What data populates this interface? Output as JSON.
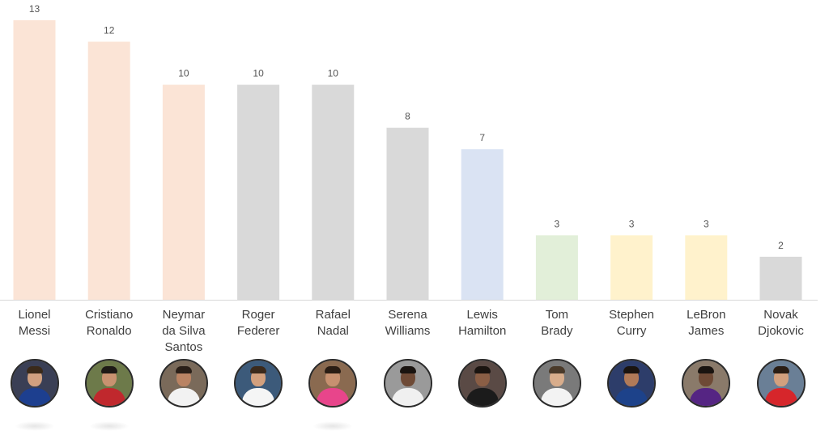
{
  "chart_data": {
    "type": "bar",
    "title": "",
    "xlabel": "",
    "ylabel": "",
    "ylim": [
      0,
      13
    ],
    "grid": false,
    "legend": "none",
    "categories": [
      "Lionel\nMessi",
      "Cristiano\nRonaldo",
      "Neymar\nda Silva\nSantos",
      "Roger\nFederer",
      "Rafael\nNadal",
      "Serena\nWilliams",
      "Lewis\nHamilton",
      "Tom\nBrady",
      "Stephen\nCurry",
      "LeBron\nJames",
      "Novak\nDjokovic"
    ],
    "values": [
      13,
      12,
      10,
      10,
      10,
      8,
      7,
      3,
      3,
      3,
      2
    ],
    "data_labels": [
      "13",
      "12",
      "10",
      "10",
      "10",
      "8",
      "7",
      "3",
      "3",
      "3",
      "2"
    ],
    "bar_colors": [
      "#fbe4d6",
      "#fbe4d6",
      "#fbe4d6",
      "#d9d9d9",
      "#d9d9d9",
      "#d9d9d9",
      "#dae3f3",
      "#e2efd9",
      "#fff2cc",
      "#fff2cc",
      "#d9d9d9"
    ],
    "axis_color": "#d9d9d9"
  },
  "avatars": [
    {
      "icon": "messi-photo-icon",
      "bg": "#3a3f55",
      "jersey": "#1d3f8f",
      "skin": "#d0a080",
      "hair": "#3a2a1a"
    },
    {
      "icon": "ronaldo-photo-icon",
      "bg": "#6d7a4a",
      "jersey": "#c0282d",
      "skin": "#c89270",
      "hair": "#1e1a16"
    },
    {
      "icon": "neymar-photo-icon",
      "bg": "#7a6a5a",
      "jersey": "#f2f2f2",
      "skin": "#b98363",
      "hair": "#2a1f18"
    },
    {
      "icon": "federer-photo-icon",
      "bg": "#3c5a7a",
      "jersey": "#f5f5f5",
      "skin": "#d2a07e",
      "hair": "#3b2a1c"
    },
    {
      "icon": "nadal-photo-icon",
      "bg": "#8a6a50",
      "jersey": "#e8458b",
      "skin": "#c79170",
      "hair": "#2a1d14"
    },
    {
      "icon": "serena-photo-icon",
      "bg": "#9a9a9a",
      "jersey": "#f0f0f0",
      "skin": "#6e4a36",
      "hair": "#1a1410"
    },
    {
      "icon": "hamilton-photo-icon",
      "bg": "#5a4a45",
      "jersey": "#1b1b1b",
      "skin": "#8a5e45",
      "hair": "#1a1410"
    },
    {
      "icon": "brady-photo-icon",
      "bg": "#7a7a7a",
      "jersey": "#f3f3f3",
      "skin": "#d8ad8c",
      "hair": "#4a3a2a"
    },
    {
      "icon": "curry-photo-icon",
      "bg": "#2d3d6a",
      "jersey": "#1d428a",
      "skin": "#b07a58",
      "hair": "#1a1410"
    },
    {
      "icon": "lebron-photo-icon",
      "bg": "#8a7a6a",
      "jersey": "#552583",
      "skin": "#6e4a36",
      "hair": "#1a1410"
    },
    {
      "icon": "djokovic-photo-icon",
      "bg": "#6a7f96",
      "jersey": "#d6262b",
      "skin": "#d2a07e",
      "hair": "#2a1d14"
    }
  ]
}
